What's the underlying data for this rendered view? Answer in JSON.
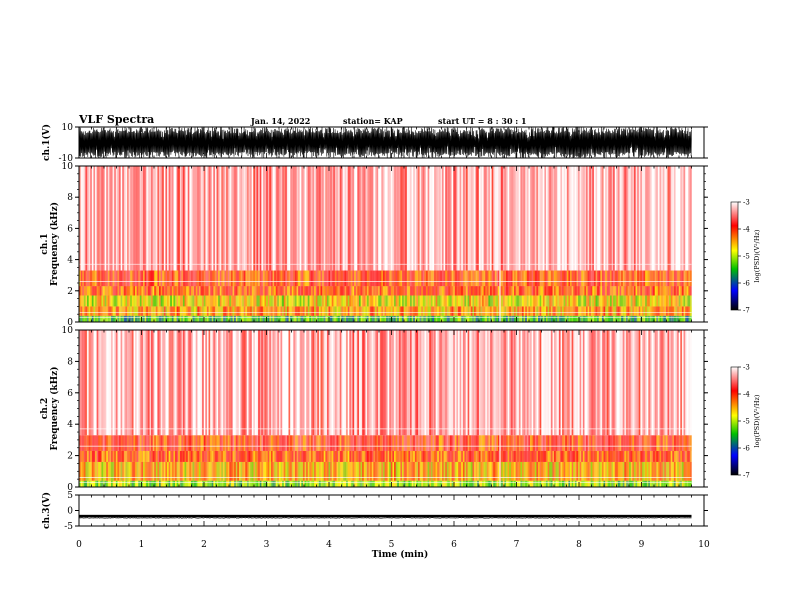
{
  "header": {
    "title": "VLF Spectra",
    "date": "Jan. 14, 2022",
    "station": "station= KAP",
    "start_ut": "start  UT =   8 : 30 : 1"
  },
  "chart_data": [
    {
      "type": "line",
      "panel": "ch1-waveform",
      "ylabel": "ch.1(V)",
      "ylim": [
        -10,
        10
      ],
      "yticks": [
        "10",
        "-10"
      ],
      "xlim": [
        0,
        10
      ],
      "description_level": "saturated dense waveform between -10 and 10 V",
      "x_extent": [
        0,
        9.8
      ]
    },
    {
      "type": "heatmap",
      "panel": "ch1-spectrogram",
      "ylabel": "ch.1\nFrequency  (kHz)",
      "ylim": [
        0,
        10
      ],
      "yticks": [
        "0",
        "2",
        "4",
        "6",
        "8",
        "10"
      ],
      "xlim": [
        0,
        10
      ],
      "x_extent": [
        0,
        9.8
      ],
      "bands_khz": [
        {
          "from": 0.0,
          "to": 0.4,
          "level": -5.5
        },
        {
          "from": 0.4,
          "to": 1.0,
          "level": -4.5
        },
        {
          "from": 1.0,
          "to": 1.7,
          "level": -4.8
        },
        {
          "from": 1.7,
          "to": 2.3,
          "level": -4.2
        },
        {
          "from": 2.3,
          "to": 3.3,
          "level": -4.1
        },
        {
          "from": 3.3,
          "to": 10.0,
          "level": -3.4
        }
      ],
      "colorbar": {
        "label": "log(PSD)(V²/Hz)",
        "range": [
          -7,
          -3
        ],
        "ticks": [
          "-3",
          "-4",
          "-5",
          "-6",
          "-7"
        ],
        "colors": [
          "#ffffff",
          "#ff0000",
          "#ffff00",
          "#00c000",
          "#0000ff",
          "#000000"
        ]
      }
    },
    {
      "type": "heatmap",
      "panel": "ch2-spectrogram",
      "ylabel": "ch.2\nFrequency  (kHz)",
      "ylim": [
        0,
        10
      ],
      "yticks": [
        "0",
        "2",
        "4",
        "6",
        "8",
        "10"
      ],
      "xlim": [
        0,
        10
      ],
      "x_extent": [
        0,
        9.8
      ],
      "bands_khz": [
        {
          "from": 0.0,
          "to": 0.4,
          "level": -5.2
        },
        {
          "from": 0.4,
          "to": 1.6,
          "level": -4.6
        },
        {
          "from": 1.6,
          "to": 2.3,
          "level": -4.2
        },
        {
          "from": 2.3,
          "to": 3.3,
          "level": -4.0
        },
        {
          "from": 3.3,
          "to": 10.0,
          "level": -3.4
        }
      ],
      "colorbar": {
        "label": "log(PSD)(V²/Hz)",
        "range": [
          -7,
          -3
        ],
        "ticks": [
          "-3",
          "-4",
          "-5",
          "-6",
          "-7"
        ],
        "colors": [
          "#ffffff",
          "#ff0000",
          "#ffff00",
          "#00c000",
          "#0000ff",
          "#000000"
        ]
      }
    },
    {
      "type": "line",
      "panel": "ch3-waveform",
      "ylabel": "ch.3(V)",
      "ylim": [
        -5,
        5
      ],
      "yticks": [
        "5",
        "0",
        "-5"
      ],
      "xlim": [
        0,
        10
      ],
      "x_extent": [
        0,
        9.8
      ],
      "signal_band": [
        -2.2,
        -1.4
      ]
    }
  ],
  "xaxis": {
    "label": "Time  (min)",
    "ticks": [
      "0",
      "1",
      "2",
      "3",
      "4",
      "5",
      "6",
      "7",
      "8",
      "9",
      "10"
    ]
  }
}
